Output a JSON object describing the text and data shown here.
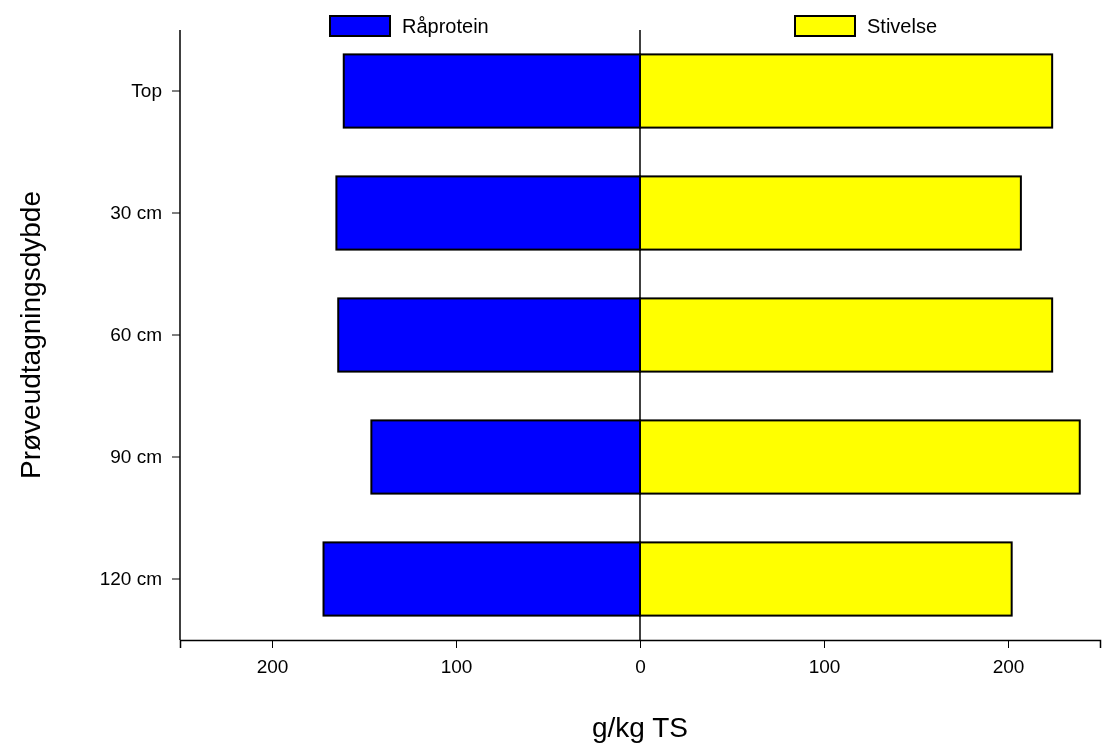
{
  "chart_data": {
    "type": "bar",
    "orientation": "horizontal",
    "stacked": true,
    "xlabel": "g/kg TS",
    "ylabel": "Prøveudtagningsdybde",
    "categories": [
      "Top",
      "30 cm",
      "60 cm",
      "90 cm",
      "120 cm"
    ],
    "series": [
      {
        "name": "Råprotein",
        "color": "#0000ff",
        "values": [
          -161,
          -165,
          -164,
          -146,
          -172
        ]
      },
      {
        "name": "Stivelse",
        "color": "#ffff00",
        "values": [
          224,
          207,
          224,
          239,
          202
        ]
      }
    ],
    "xlim": [
      -250,
      250
    ],
    "xticks": [
      {
        "value": -200,
        "label": "200"
      },
      {
        "value": -100,
        "label": "100"
      },
      0,
      100,
      200
    ],
    "ref_lines": [
      {
        "axis": "x",
        "value": 0,
        "color": "#000000"
      }
    ],
    "legend": "top",
    "grid": false
  }
}
